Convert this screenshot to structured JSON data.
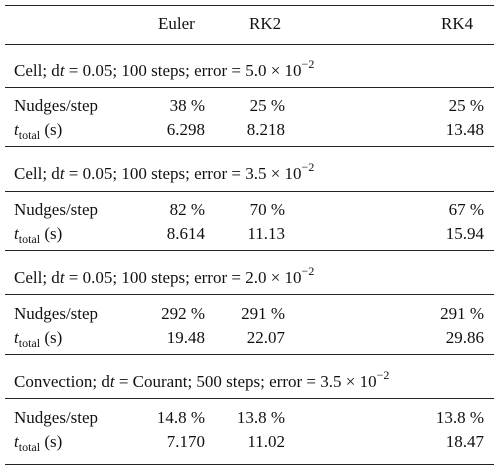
{
  "header": {
    "col1": "Euler",
    "col2": "RK2",
    "col3": "RK4"
  },
  "row_labels": {
    "nudges": "Nudges/step",
    "ttotal_t": "t",
    "ttotal_sub": "total",
    "ttotal_unit": "(s)"
  },
  "sections": [
    {
      "title_pre": "Cell; d",
      "title_t": "t",
      "title_mid": " = 0.05; 100 steps; error = 5.0 × 10",
      "title_exp": "−2",
      "nudges": [
        "38 %",
        "25 %",
        "25 %"
      ],
      "ttotal": [
        "6.298",
        "8.218",
        "13.48"
      ]
    },
    {
      "title_pre": "Cell; d",
      "title_t": "t",
      "title_mid": " = 0.05; 100 steps; error = 3.5 × 10",
      "title_exp": "−2",
      "nudges": [
        "82 %",
        "70 %",
        "67 %"
      ],
      "ttotal": [
        "8.614",
        "11.13",
        "15.94"
      ]
    },
    {
      "title_pre": "Cell; d",
      "title_t": "t",
      "title_mid": " = 0.05; 100 steps; error = 2.0 × 10",
      "title_exp": "−2",
      "nudges": [
        "292 %",
        "291 %",
        "291 %"
      ],
      "ttotal": [
        "19.48",
        "22.07",
        "29.86"
      ]
    },
    {
      "title_pre": "Convection; d",
      "title_t": "t",
      "title_mid": " = Courant; 500 steps; error = 3.5 × 10",
      "title_exp": "−2",
      "nudges": [
        "14.8 %",
        "13.8 %",
        "13.8 %"
      ],
      "ttotal": [
        "7.170",
        "11.02",
        "18.47"
      ]
    }
  ]
}
